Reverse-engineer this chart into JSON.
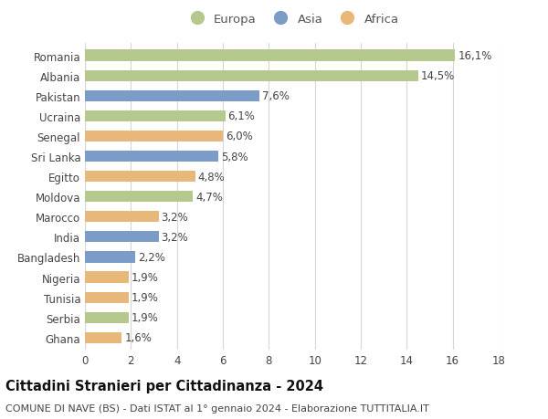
{
  "categories": [
    "Romania",
    "Albania",
    "Pakistan",
    "Ucraina",
    "Senegal",
    "Sri Lanka",
    "Egitto",
    "Moldova",
    "Marocco",
    "India",
    "Bangladesh",
    "Nigeria",
    "Tunisia",
    "Serbia",
    "Ghana"
  ],
  "values": [
    16.1,
    14.5,
    7.6,
    6.1,
    6.0,
    5.8,
    4.8,
    4.7,
    3.2,
    3.2,
    2.2,
    1.9,
    1.9,
    1.9,
    1.6
  ],
  "labels": [
    "16,1%",
    "14,5%",
    "7,6%",
    "6,1%",
    "6,0%",
    "5,8%",
    "4,8%",
    "4,7%",
    "3,2%",
    "3,2%",
    "2,2%",
    "1,9%",
    "1,9%",
    "1,9%",
    "1,6%"
  ],
  "continents": [
    "Europa",
    "Europa",
    "Asia",
    "Europa",
    "Africa",
    "Asia",
    "Africa",
    "Europa",
    "Africa",
    "Asia",
    "Asia",
    "Africa",
    "Africa",
    "Europa",
    "Africa"
  ],
  "colors": {
    "Europa": "#b5c98e",
    "Asia": "#7b9cc7",
    "Africa": "#e8b87a"
  },
  "xlim": [
    0,
    18
  ],
  "xticks": [
    0,
    2,
    4,
    6,
    8,
    10,
    12,
    14,
    16,
    18
  ],
  "title": "Cittadini Stranieri per Cittadinanza - 2024",
  "subtitle": "COMUNE DI NAVE (BS) - Dati ISTAT al 1° gennaio 2024 - Elaborazione TUTTITALIA.IT",
  "bg_color": "#ffffff",
  "grid_color": "#d5d5d5",
  "bar_height": 0.55,
  "label_fontsize": 8.5,
  "title_fontsize": 10.5,
  "subtitle_fontsize": 8,
  "tick_fontsize": 8.5,
  "legend_fontsize": 9.5
}
